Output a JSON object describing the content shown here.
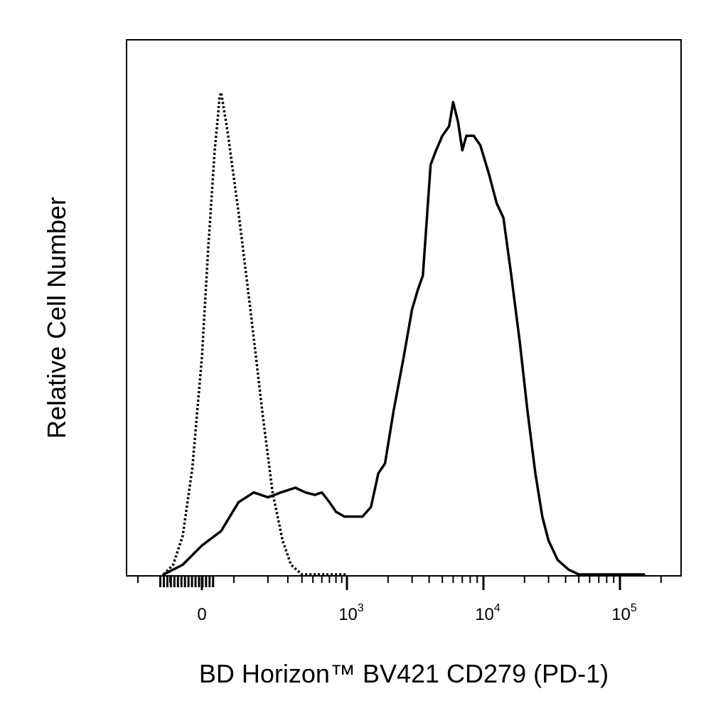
{
  "chart_data": {
    "type": "histogram",
    "xlabel": "BD Horizon™ BV421 CD279 (PD-1)",
    "ylabel": "Relative Cell Number",
    "x_scale": "biexponential",
    "xlim": [
      -300,
      200000
    ],
    "ylim": [
      0,
      1
    ],
    "grid": false,
    "legend": "none",
    "x_ticks": [
      {
        "value": 0,
        "base": "0",
        "exp": ""
      },
      {
        "value": 1000,
        "base": "10",
        "exp": "3"
      },
      {
        "value": 10000,
        "base": "10",
        "exp": "4"
      },
      {
        "value": 100000,
        "base": "10",
        "exp": "5"
      }
    ],
    "series": [
      {
        "style": "dotted",
        "color": "#000000",
        "points": [
          [
            -120,
            0.0
          ],
          [
            -90,
            0.02
          ],
          [
            -60,
            0.08
          ],
          [
            -30,
            0.22
          ],
          [
            0,
            0.45
          ],
          [
            20,
            0.68
          ],
          [
            40,
            0.88
          ],
          [
            50,
            0.95
          ],
          [
            55,
            0.99
          ],
          [
            60,
            1.0
          ],
          [
            80,
            0.92
          ],
          [
            110,
            0.75
          ],
          [
            140,
            0.55
          ],
          [
            180,
            0.33
          ],
          [
            220,
            0.17
          ],
          [
            270,
            0.07
          ],
          [
            320,
            0.02
          ],
          [
            400,
            0.0
          ],
          [
            700,
            0.0
          ],
          [
            1000,
            0.0
          ]
        ]
      },
      {
        "style": "solid",
        "color": "#000000",
        "points": [
          [
            -120,
            0.0
          ],
          [
            -60,
            0.02
          ],
          [
            0,
            0.06
          ],
          [
            60,
            0.09
          ],
          [
            110,
            0.15
          ],
          [
            150,
            0.17
          ],
          [
            200,
            0.16
          ],
          [
            260,
            0.17
          ],
          [
            350,
            0.18
          ],
          [
            430,
            0.17
          ],
          [
            520,
            0.165
          ],
          [
            600,
            0.17
          ],
          [
            700,
            0.15
          ],
          [
            800,
            0.13
          ],
          [
            950,
            0.12
          ],
          [
            1100,
            0.12
          ],
          [
            1300,
            0.12
          ],
          [
            1500,
            0.14
          ],
          [
            1700,
            0.21
          ],
          [
            1900,
            0.23
          ],
          [
            2200,
            0.34
          ],
          [
            2600,
            0.45
          ],
          [
            3000,
            0.55
          ],
          [
            3300,
            0.59
          ],
          [
            3600,
            0.62
          ],
          [
            4100,
            0.85
          ],
          [
            4500,
            0.88
          ],
          [
            5000,
            0.91
          ],
          [
            5600,
            0.93
          ],
          [
            6000,
            0.98
          ],
          [
            6500,
            0.94
          ],
          [
            7000,
            0.88
          ],
          [
            7500,
            0.91
          ],
          [
            8500,
            0.91
          ],
          [
            9500,
            0.89
          ],
          [
            11000,
            0.83
          ],
          [
            12500,
            0.77
          ],
          [
            14000,
            0.74
          ],
          [
            16000,
            0.62
          ],
          [
            18500,
            0.48
          ],
          [
            21000,
            0.34
          ],
          [
            24000,
            0.21
          ],
          [
            27000,
            0.12
          ],
          [
            30000,
            0.07
          ],
          [
            35000,
            0.03
          ],
          [
            42000,
            0.01
          ],
          [
            50000,
            0.0
          ],
          [
            70000,
            0.0
          ],
          [
            100000,
            0.0
          ],
          [
            150000,
            0.0
          ]
        ]
      }
    ]
  }
}
